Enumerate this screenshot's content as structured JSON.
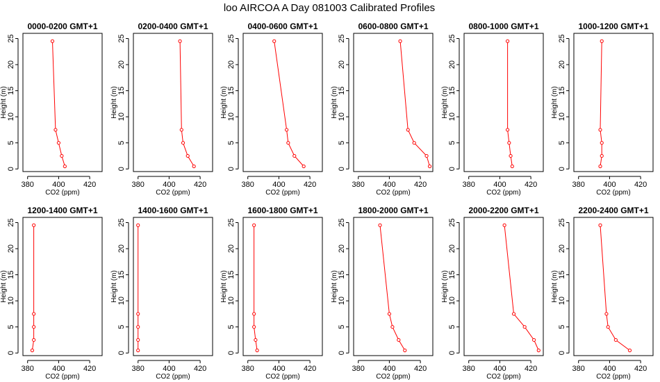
{
  "title": "loo AIRCOA A  Day 081003  Calibrated Profiles",
  "chart_data": [
    {
      "type": "line",
      "title": "0000-0200 GMT+1",
      "xlabel": "CO2 (ppm)",
      "ylabel": "Height (m)",
      "xlim": [
        377,
        428
      ],
      "ylim": [
        -0.5,
        26
      ],
      "xticks": [
        380,
        400,
        420
      ],
      "yticks": [
        0,
        5,
        10,
        15,
        20,
        25
      ],
      "series": [
        {
          "x": [
            396,
            398,
            400,
            402,
            404
          ],
          "y": [
            24.5,
            7.5,
            5,
            2.5,
            0.5
          ]
        }
      ]
    },
    {
      "type": "line",
      "title": "0200-0400 GMT+1",
      "xlabel": "CO2 (ppm)",
      "ylabel": "Height (m)",
      "xlim": [
        377,
        428
      ],
      "ylim": [
        -0.5,
        26
      ],
      "xticks": [
        380,
        400,
        420
      ],
      "yticks": [
        0,
        5,
        10,
        15,
        20,
        25
      ],
      "series": [
        {
          "x": [
            407,
            408,
            409,
            412,
            416
          ],
          "y": [
            24.5,
            7.5,
            5,
            2.5,
            0.5
          ]
        }
      ]
    },
    {
      "type": "line",
      "title": "0400-0600 GMT+1",
      "xlabel": "CO2 (ppm)",
      "ylabel": "Height (m)",
      "xlim": [
        377,
        428
      ],
      "ylim": [
        -0.5,
        26
      ],
      "xticks": [
        380,
        400,
        420
      ],
      "yticks": [
        0,
        5,
        10,
        15,
        20,
        25
      ],
      "series": [
        {
          "x": [
            397,
            405,
            406,
            410,
            416
          ],
          "y": [
            24.5,
            7.5,
            5,
            2.5,
            0.5
          ]
        }
      ]
    },
    {
      "type": "line",
      "title": "0600-0800 GMT+1",
      "xlabel": "CO2 (ppm)",
      "ylabel": "Height (m)",
      "xlim": [
        377,
        428
      ],
      "ylim": [
        -0.5,
        26
      ],
      "xticks": [
        380,
        400,
        420
      ],
      "yticks": [
        0,
        5,
        10,
        15,
        20,
        25
      ],
      "series": [
        {
          "x": [
            407,
            412,
            416,
            424,
            426
          ],
          "y": [
            24.5,
            7.5,
            5,
            2.5,
            0.5
          ]
        }
      ]
    },
    {
      "type": "line",
      "title": "0800-1000 GMT+1",
      "xlabel": "CO2 (ppm)",
      "ylabel": "Height (m)",
      "xlim": [
        377,
        428
      ],
      "ylim": [
        -0.5,
        26
      ],
      "xticks": [
        380,
        400,
        420
      ],
      "yticks": [
        0,
        5,
        10,
        15,
        20,
        25
      ],
      "series": [
        {
          "x": [
            405,
            405,
            406,
            407,
            408
          ],
          "y": [
            24.5,
            7.5,
            5,
            2.5,
            0.5
          ]
        }
      ]
    },
    {
      "type": "line",
      "title": "1000-1200 GMT+1",
      "xlabel": "CO2 (ppm)",
      "ylabel": "Height (m)",
      "xlim": [
        377,
        428
      ],
      "ylim": [
        -0.5,
        26
      ],
      "xticks": [
        380,
        400,
        420
      ],
      "yticks": [
        0,
        5,
        10,
        15,
        20,
        25
      ],
      "series": [
        {
          "x": [
            395,
            394,
            395,
            395,
            394
          ],
          "y": [
            24.5,
            7.5,
            5,
            2.5,
            0.5
          ]
        }
      ]
    },
    {
      "type": "line",
      "title": "1200-1400 GMT+1",
      "xlabel": "CO2 (ppm)",
      "ylabel": "Height (m)",
      "xlim": [
        377,
        428
      ],
      "ylim": [
        -0.5,
        26
      ],
      "xticks": [
        380,
        400,
        420
      ],
      "yticks": [
        0,
        5,
        10,
        15,
        20,
        25
      ],
      "series": [
        {
          "x": [
            384,
            384,
            384,
            384,
            383
          ],
          "y": [
            24.5,
            7.5,
            5,
            2.5,
            0.5
          ]
        }
      ]
    },
    {
      "type": "line",
      "title": "1400-1600 GMT+1",
      "xlabel": "CO2 (ppm)",
      "ylabel": "Height (m)",
      "xlim": [
        377,
        428
      ],
      "ylim": [
        -0.5,
        26
      ],
      "xticks": [
        380,
        400,
        420
      ],
      "yticks": [
        0,
        5,
        10,
        15,
        20,
        25
      ],
      "series": [
        {
          "x": [
            380,
            380,
            380,
            380,
            380
          ],
          "y": [
            24.5,
            7.5,
            5,
            2.5,
            0.5
          ]
        }
      ]
    },
    {
      "type": "line",
      "title": "1600-1800 GMT+1",
      "xlabel": "CO2 (ppm)",
      "ylabel": "Height (m)",
      "xlim": [
        377,
        428
      ],
      "ylim": [
        -0.5,
        26
      ],
      "xticks": [
        380,
        400,
        420
      ],
      "yticks": [
        0,
        5,
        10,
        15,
        20,
        25
      ],
      "series": [
        {
          "x": [
            384,
            384,
            384,
            385,
            386
          ],
          "y": [
            24.5,
            7.5,
            5,
            2.5,
            0.5
          ]
        }
      ]
    },
    {
      "type": "line",
      "title": "1800-2000 GMT+1",
      "xlabel": "CO2 (ppm)",
      "ylabel": "Height (m)",
      "xlim": [
        377,
        428
      ],
      "ylim": [
        -0.5,
        26
      ],
      "xticks": [
        380,
        400,
        420
      ],
      "yticks": [
        0,
        5,
        10,
        15,
        20,
        25
      ],
      "series": [
        {
          "x": [
            394,
            400,
            402,
            406,
            410
          ],
          "y": [
            24.5,
            7.5,
            5,
            2.5,
            0.5
          ]
        }
      ]
    },
    {
      "type": "line",
      "title": "2000-2200 GMT+1",
      "xlabel": "CO2 (ppm)",
      "ylabel": "Height (m)",
      "xlim": [
        377,
        428
      ],
      "ylim": [
        -0.5,
        26
      ],
      "xticks": [
        380,
        400,
        420
      ],
      "yticks": [
        0,
        5,
        10,
        15,
        20,
        25
      ],
      "series": [
        {
          "x": [
            403,
            409,
            416,
            422,
            425
          ],
          "y": [
            24.5,
            7.5,
            5,
            2.5,
            0.5
          ]
        }
      ]
    },
    {
      "type": "line",
      "title": "2200-2400 GMT+1",
      "xlabel": "CO2 (ppm)",
      "ylabel": "Height (m)",
      "xlim": [
        377,
        428
      ],
      "ylim": [
        -0.5,
        26
      ],
      "xticks": [
        380,
        400,
        420
      ],
      "yticks": [
        0,
        5,
        10,
        15,
        20,
        25
      ],
      "series": [
        {
          "x": [
            394,
            398,
            399,
            404,
            413
          ],
          "y": [
            24.5,
            7.5,
            5,
            2.5,
            0.5
          ]
        }
      ]
    }
  ],
  "colors": {
    "line": "#ff0000",
    "axis": "#000000"
  }
}
